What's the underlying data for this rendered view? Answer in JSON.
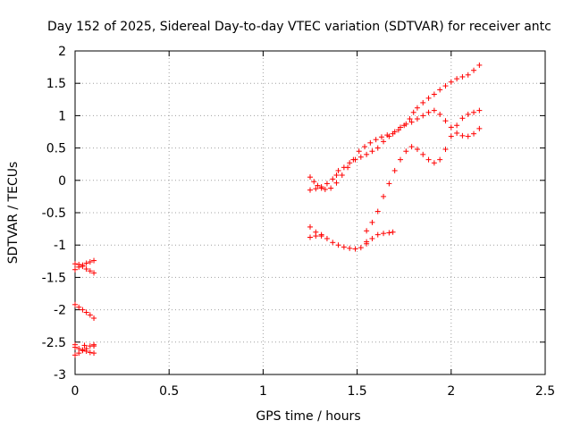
{
  "chart_data": {
    "type": "scatter",
    "title": "Day 152 of 2025, Sidereal Day-to-day VTEC variation (SDTVAR) for receiver antc",
    "xlabel": "GPS time / hours",
    "ylabel": "SDTVAR / TECUs",
    "xlim": [
      0,
      2.5
    ],
    "ylim": [
      -3,
      2
    ],
    "x_ticks": [
      0,
      0.5,
      1,
      1.5,
      2,
      2.5
    ],
    "x_tick_labels": [
      "0",
      "0.5",
      "1",
      "1.5",
      "2",
      "2.5"
    ],
    "y_ticks": [
      -3,
      -2.5,
      -2,
      -1.5,
      -1,
      -0.5,
      0,
      0.5,
      1,
      1.5,
      2
    ],
    "y_tick_labels": [
      "-3",
      "-2.5",
      "-2",
      "-1.5",
      "-1",
      "-0.5",
      "0",
      "0.5",
      "1",
      "1.5",
      "2"
    ],
    "grid": true,
    "marker": "+",
    "color": "#ff0000",
    "series": [
      {
        "points": [
          [
            0.0,
            -1.29
          ],
          [
            0.02,
            -1.3
          ],
          [
            0.04,
            -1.33
          ],
          [
            0.06,
            -1.37
          ],
          [
            0.08,
            -1.4
          ],
          [
            0.1,
            -1.43
          ],
          [
            0.0,
            -1.38
          ],
          [
            0.02,
            -1.34
          ],
          [
            0.04,
            -1.31
          ],
          [
            0.06,
            -1.28
          ],
          [
            0.08,
            -1.26
          ],
          [
            0.1,
            -1.24
          ],
          [
            0.0,
            -1.92
          ],
          [
            0.02,
            -1.96
          ],
          [
            0.04,
            -2.0
          ],
          [
            0.06,
            -2.04
          ],
          [
            0.08,
            -2.08
          ],
          [
            0.1,
            -2.13
          ],
          [
            0.0,
            -2.58
          ],
          [
            0.02,
            -2.6
          ],
          [
            0.04,
            -2.62
          ],
          [
            0.06,
            -2.64
          ],
          [
            0.08,
            -2.66
          ],
          [
            0.1,
            -2.67
          ],
          [
            0.0,
            -2.7
          ],
          [
            0.02,
            -2.67
          ],
          [
            0.04,
            -2.63
          ],
          [
            0.06,
            -2.6
          ],
          [
            0.08,
            -2.56
          ],
          [
            0.1,
            -2.54
          ],
          [
            0.0,
            -2.54
          ],
          [
            0.05,
            -2.55
          ],
          [
            0.1,
            -2.56
          ],
          [
            1.25,
            0.05
          ],
          [
            1.27,
            -0.02
          ],
          [
            1.29,
            -0.08
          ],
          [
            1.31,
            -0.12
          ],
          [
            1.33,
            -0.14
          ],
          [
            1.25,
            -0.15
          ],
          [
            1.28,
            -0.13
          ],
          [
            1.31,
            -0.1
          ],
          [
            1.34,
            -0.05
          ],
          [
            1.37,
            0.02
          ],
          [
            1.39,
            0.08
          ],
          [
            1.36,
            -0.12
          ],
          [
            1.39,
            -0.04
          ],
          [
            1.42,
            0.08
          ],
          [
            1.45,
            0.2
          ],
          [
            1.48,
            0.32
          ],
          [
            1.51,
            0.45
          ],
          [
            1.54,
            0.52
          ],
          [
            1.57,
            0.58
          ],
          [
            1.6,
            0.63
          ],
          [
            1.63,
            0.67
          ],
          [
            1.66,
            0.7
          ],
          [
            1.69,
            0.72
          ],
          [
            1.72,
            0.78
          ],
          [
            1.75,
            0.85
          ],
          [
            1.78,
            0.95
          ],
          [
            1.8,
            1.05
          ],
          [
            1.82,
            1.12
          ],
          [
            1.85,
            1.2
          ],
          [
            1.88,
            1.27
          ],
          [
            1.91,
            1.33
          ],
          [
            1.94,
            1.4
          ],
          [
            1.97,
            1.46
          ],
          [
            2.0,
            1.52
          ],
          [
            2.03,
            1.57
          ],
          [
            2.06,
            1.6
          ],
          [
            2.09,
            1.63
          ],
          [
            2.12,
            1.7
          ],
          [
            2.15,
            1.78
          ],
          [
            1.4,
            0.15
          ],
          [
            1.43,
            0.2
          ],
          [
            1.46,
            0.27
          ],
          [
            1.49,
            0.32
          ],
          [
            1.52,
            0.36
          ],
          [
            1.55,
            0.4
          ],
          [
            1.58,
            0.45
          ],
          [
            1.61,
            0.5
          ],
          [
            1.64,
            0.6
          ],
          [
            1.67,
            0.68
          ],
          [
            1.7,
            0.75
          ],
          [
            1.73,
            0.82
          ],
          [
            1.76,
            0.87
          ],
          [
            1.79,
            0.9
          ],
          [
            1.82,
            0.95
          ],
          [
            1.85,
            1.0
          ],
          [
            1.88,
            1.05
          ],
          [
            1.91,
            1.08
          ],
          [
            1.94,
            1.02
          ],
          [
            1.97,
            0.92
          ],
          [
            2.0,
            0.82
          ],
          [
            2.03,
            0.73
          ],
          [
            2.06,
            0.69
          ],
          [
            2.09,
            0.68
          ],
          [
            2.12,
            0.72
          ],
          [
            2.15,
            0.8
          ],
          [
            1.25,
            -0.72
          ],
          [
            1.28,
            -0.8
          ],
          [
            1.31,
            -0.86
          ],
          [
            1.34,
            -0.9
          ],
          [
            1.37,
            -0.96
          ],
          [
            1.4,
            -1.0
          ],
          [
            1.43,
            -1.03
          ],
          [
            1.46,
            -1.05
          ],
          [
            1.49,
            -1.06
          ],
          [
            1.52,
            -1.04
          ],
          [
            1.55,
            -0.95
          ],
          [
            1.25,
            -0.88
          ],
          [
            1.28,
            -0.86
          ],
          [
            1.31,
            -0.84
          ],
          [
            1.55,
            -0.78
          ],
          [
            1.58,
            -0.65
          ],
          [
            1.61,
            -0.48
          ],
          [
            1.64,
            -0.25
          ],
          [
            1.67,
            -0.05
          ],
          [
            1.7,
            0.15
          ],
          [
            1.73,
            0.32
          ],
          [
            1.76,
            0.45
          ],
          [
            1.79,
            0.52
          ],
          [
            1.82,
            0.48
          ],
          [
            1.85,
            0.4
          ],
          [
            1.88,
            0.32
          ],
          [
            1.91,
            0.27
          ],
          [
            1.94,
            0.32
          ],
          [
            1.97,
            0.48
          ],
          [
            2.0,
            0.68
          ],
          [
            2.03,
            0.85
          ],
          [
            2.06,
            0.96
          ],
          [
            2.09,
            1.02
          ],
          [
            2.12,
            1.05
          ],
          [
            2.15,
            1.08
          ],
          [
            1.55,
            -0.98
          ],
          [
            1.58,
            -0.9
          ],
          [
            1.61,
            -0.84
          ],
          [
            1.64,
            -0.82
          ],
          [
            1.67,
            -0.81
          ],
          [
            1.69,
            -0.8
          ]
        ]
      }
    ]
  }
}
